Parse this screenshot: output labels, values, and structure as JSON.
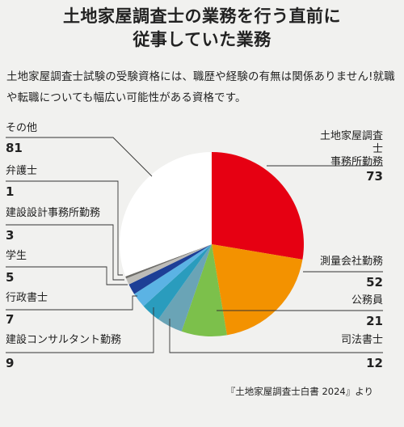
{
  "header": {
    "title_line1": "土地家屋調査士の業務を行う直前に",
    "title_line2": "従事していた業務",
    "description": "土地家屋調査士試験の受験資格には、職歴や経験の有無は関係ありません!就職や転職についても幅広い可能性がある資格です。"
  },
  "chart_data": {
    "type": "pie",
    "start_angle_deg": 0,
    "direction": "clockwise",
    "slices": [
      {
        "label": "土地家屋調査士事務所勤務",
        "label_line1": "土地家屋調査士",
        "label_line2": "事務所勤務",
        "value": 73,
        "color": "#e60012"
      },
      {
        "label": "測量会社勤務",
        "value": 52,
        "color": "#f39200"
      },
      {
        "label": "公務員",
        "value": 21,
        "color": "#7cc04b"
      },
      {
        "label": "司法書士",
        "value": 12,
        "color": "#6aa4b6"
      },
      {
        "label": "建設コンサルタント勤務",
        "value": 9,
        "color": "#2a9cbd"
      },
      {
        "label": "行政書士",
        "value": 7,
        "color": "#5bb3e4"
      },
      {
        "label": "学生",
        "value": 5,
        "color": "#1d3f96"
      },
      {
        "label": "建設設計事務所勤務",
        "value": 3,
        "color": "#bdbcb8"
      },
      {
        "label": "弁護士",
        "value": 1,
        "color": "#6e6d69"
      },
      {
        "label": "その他",
        "value": 81,
        "color": "#ffffff"
      }
    ]
  },
  "source": "『土地家屋調査士白書 2024』より"
}
